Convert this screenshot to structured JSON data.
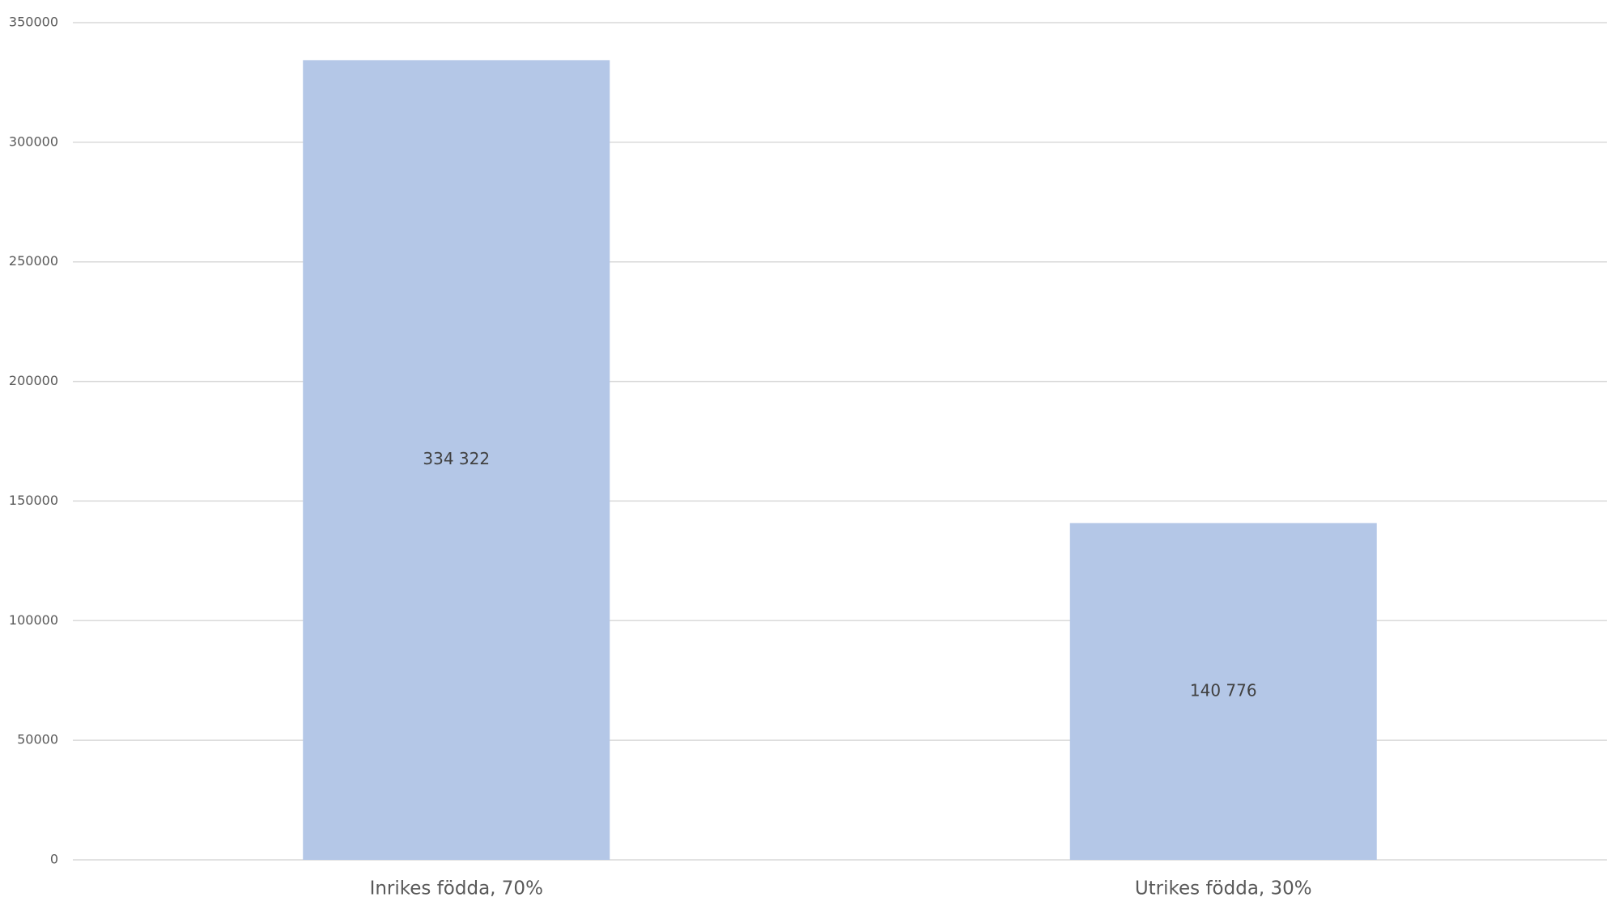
{
  "chart_data": {
    "type": "bar",
    "categories": [
      "Inrikes födda, 70%",
      "Utrikes födda, 30%"
    ],
    "values": [
      334322,
      140776
    ],
    "value_labels": [
      "334 322",
      "140 776"
    ],
    "color": "#b4c7e7",
    "ylim": [
      0,
      350000
    ],
    "yticks": [
      0,
      50000,
      100000,
      150000,
      200000,
      250000,
      300000,
      350000
    ],
    "grid": true
  }
}
